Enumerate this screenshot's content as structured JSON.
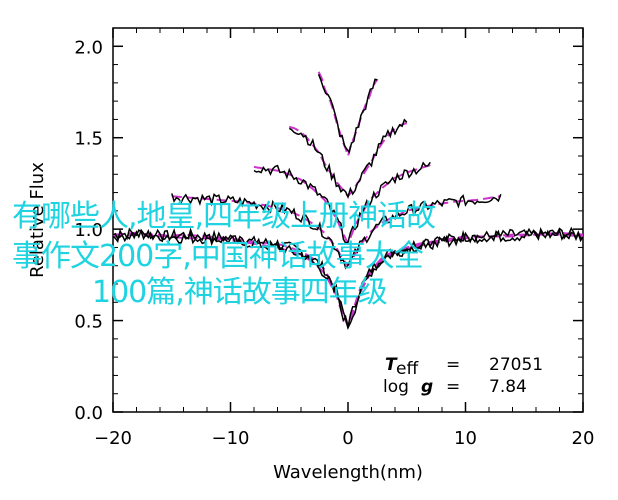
{
  "chart_data": {
    "type": "line",
    "title": "",
    "xlabel": "Wavelength(nm)",
    "ylabel": "Relative Flux",
    "xlim": [
      -20,
      20
    ],
    "ylim": [
      0.0,
      2.1
    ],
    "x_ticks": [
      -20,
      -10,
      0,
      10,
      20
    ],
    "y_ticks": [
      0.0,
      0.5,
      1.0,
      1.5,
      2.0
    ],
    "x_tick_labels": [
      "−20",
      "−10",
      "0",
      "10",
      "20"
    ],
    "y_tick_labels": [
      "0.0",
      "0.5",
      "1.0",
      "1.5",
      "2.0"
    ],
    "grid": false,
    "series": [
      {
        "style": "observed",
        "color": "#000000",
        "profiles": [
          {
            "offset": 0.0,
            "x": [
              -20,
              -18,
              -16,
              -14,
              -12,
              -10,
              -8,
              -6,
              -4,
              -3,
              -2,
              -1,
              -0.5,
              0,
              0.5,
              1,
              2,
              3,
              4,
              6,
              8,
              10,
              12,
              14,
              16,
              18,
              20
            ],
            "y": [
              0.97,
              0.98,
              0.96,
              0.97,
              0.96,
              0.95,
              0.93,
              0.92,
              0.88,
              0.84,
              0.78,
              0.66,
              0.56,
              0.48,
              0.57,
              0.67,
              0.78,
              0.85,
              0.88,
              0.92,
              0.94,
              0.96,
              0.96,
              0.97,
              0.97,
              0.98,
              0.97
            ]
          },
          {
            "offset": 0.0,
            "x": [
              -20,
              -18,
              -16,
              -14,
              -12,
              -10,
              -8,
              -6,
              -4,
              -3,
              -2,
              -1,
              -0.5,
              0,
              0.5,
              1,
              2,
              3,
              4,
              6,
              8,
              10,
              12,
              14,
              16,
              18,
              20
            ],
            "y": [
              0.96,
              0.97,
              0.97,
              0.95,
              0.95,
              0.94,
              0.92,
              0.9,
              0.86,
              0.82,
              0.76,
              0.64,
              0.54,
              0.47,
              0.55,
              0.65,
              0.77,
              0.84,
              0.87,
              0.91,
              0.93,
              0.95,
              0.96,
              0.96,
              0.97,
              0.97,
              0.96
            ]
          },
          {
            "offset": 0.0,
            "x": [
              -15,
              -13,
              -11,
              -9,
              -7,
              -5,
              -4,
              -3,
              -2,
              -1,
              -0.5,
              0,
              0.5,
              1,
              2,
              3,
              4,
              5,
              7,
              9,
              11,
              13
            ],
            "y": [
              1.18,
              1.17,
              1.16,
              1.15,
              1.13,
              1.1,
              1.07,
              1.03,
              0.98,
              0.9,
              0.84,
              0.8,
              0.85,
              0.91,
              0.99,
              1.04,
              1.07,
              1.1,
              1.13,
              1.15,
              1.16,
              1.18
            ]
          },
          {
            "offset": 0.0,
            "x": [
              -8,
              -7,
              -6,
              -5,
              -4,
              -3,
              -2,
              -1,
              -0.5,
              0,
              0.5,
              1,
              2,
              3,
              4,
              5,
              6,
              7
            ],
            "y": [
              1.34,
              1.33,
              1.32,
              1.3,
              1.27,
              1.22,
              1.16,
              1.06,
              0.99,
              0.92,
              1.0,
              1.07,
              1.17,
              1.23,
              1.28,
              1.31,
              1.33,
              1.35
            ]
          },
          {
            "offset": 0.0,
            "x": [
              -5,
              -4.5,
              -4,
              -3.5,
              -3,
              -2.5,
              -2,
              -1.5,
              -1,
              -0.5,
              0,
              0.5,
              1,
              1.5,
              2,
              2.5,
              3,
              3.5,
              4,
              4.5,
              5
            ],
            "y": [
              1.56,
              1.55,
              1.53,
              1.5,
              1.46,
              1.42,
              1.36,
              1.31,
              1.26,
              1.22,
              1.18,
              1.22,
              1.27,
              1.32,
              1.37,
              1.43,
              1.48,
              1.52,
              1.55,
              1.57,
              1.58
            ]
          },
          {
            "offset": 0.0,
            "x": [
              -2.5,
              -2.2,
              -2,
              -1.8,
              -1.5,
              -1.2,
              -1,
              -0.8,
              -0.5,
              -0.2,
              0,
              0.2,
              0.5,
              0.8,
              1,
              1.2,
              1.5,
              1.8,
              2,
              2.2,
              2.5
            ],
            "y": [
              1.86,
              1.82,
              1.77,
              1.74,
              1.7,
              1.64,
              1.59,
              1.55,
              1.49,
              1.44,
              1.4,
              1.45,
              1.5,
              1.55,
              1.59,
              1.63,
              1.68,
              1.72,
              1.76,
              1.79,
              1.82
            ]
          }
        ]
      },
      {
        "style": "model",
        "color": "#cc33cc"
      }
    ],
    "annotations": {
      "teff_label": "T",
      "teff_sub": "eff",
      "teff_equals": "=",
      "teff_value": "27051",
      "logg_label": "log",
      "logg_g": "g",
      "logg_equals": "=",
      "logg_value": "7.84"
    }
  },
  "overlay": {
    "lines": [
      "有哪些人,地皇,四年级上册神话故",
      "事作文200字,中国神话故事大全",
      "100篇,神话故事四年级"
    ]
  }
}
